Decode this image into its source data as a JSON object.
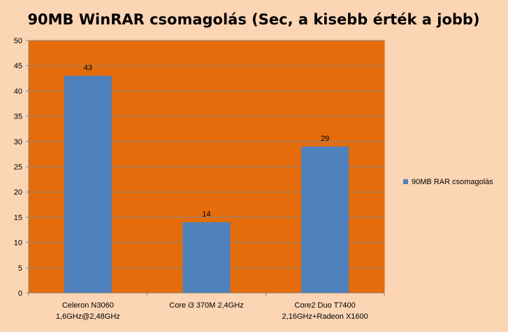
{
  "chart_data": {
    "type": "bar",
    "title": "90MB WinRAR csomagolás (Sec, a kisebb érték a jobb)",
    "categories": [
      [
        "Celeron N3060",
        "1,6GHz@2,48GHz"
      ],
      [
        "Core i3 370M 2,4GHz"
      ],
      [
        "Core2 Duo T7400",
        "2,16GHz+Radeon X1600"
      ]
    ],
    "series": [
      {
        "name": "90MB RAR csomagolás",
        "values": [
          43,
          14,
          29
        ]
      }
    ],
    "ylim": [
      0,
      50
    ],
    "yticks": [
      0,
      5,
      10,
      15,
      20,
      25,
      30,
      35,
      40,
      45,
      50
    ],
    "grid": true,
    "legend_position": "right",
    "data_labels": true
  },
  "colors": {
    "background": "#fcd5b4",
    "plot_area": "#e46c0a",
    "bar": "#4f81bd",
    "gridline": "#8c8c8c",
    "axis": "#868686"
  }
}
